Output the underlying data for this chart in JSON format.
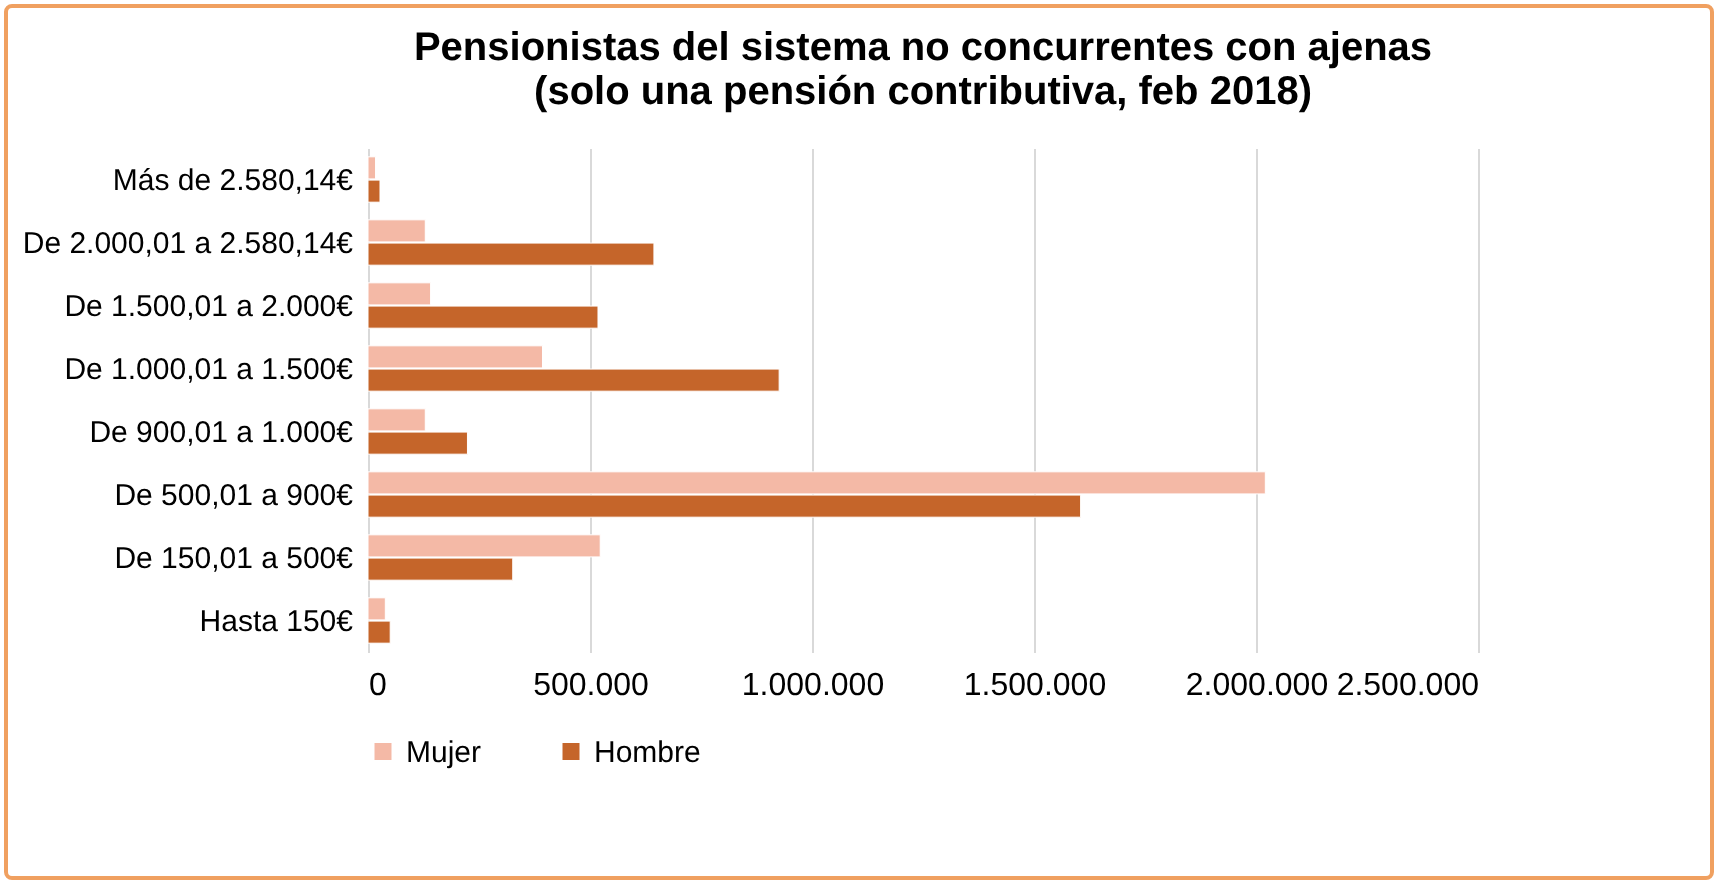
{
  "chart_data": {
    "type": "bar",
    "orientation": "horizontal",
    "title": "Pensionistas del sistema no concurrentes con ajenas\n(solo una pensión contributiva, feb 2018)",
    "categories": [
      "Más de 2.580,14€",
      "De 2.000,01 a 2.580,14€",
      "De 1.500,01 a 2.000€",
      "De 1.000,01 a 1.500€",
      "De 900,01 a 1.000€",
      "De 500,01 a 900€",
      "De 150,01 a 500€",
      "Hasta 150€"
    ],
    "series": [
      {
        "name": "Mujer",
        "color": "#f4b9a6",
        "values": [
          17000,
          129000,
          141000,
          393000,
          129000,
          2021000,
          523000,
          39000
        ]
      },
      {
        "name": "Hombre",
        "color": "#c5652a",
        "values": [
          27000,
          644000,
          518000,
          926000,
          224000,
          1605000,
          326000,
          50000
        ]
      }
    ],
    "xlim": [
      0,
      2500000
    ],
    "xticks": [
      0,
      {
        "value": 500000,
        "label": "500.000"
      },
      {
        "value": 1000000,
        "label": "1.000.000"
      },
      {
        "value": 1500000,
        "label": "1.500.000"
      },
      {
        "value": 2000000,
        "label": "2.000.000"
      },
      {
        "value": 2500000,
        "label": "2.500.000"
      }
    ],
    "grid": "x",
    "legend": "bottom"
  }
}
